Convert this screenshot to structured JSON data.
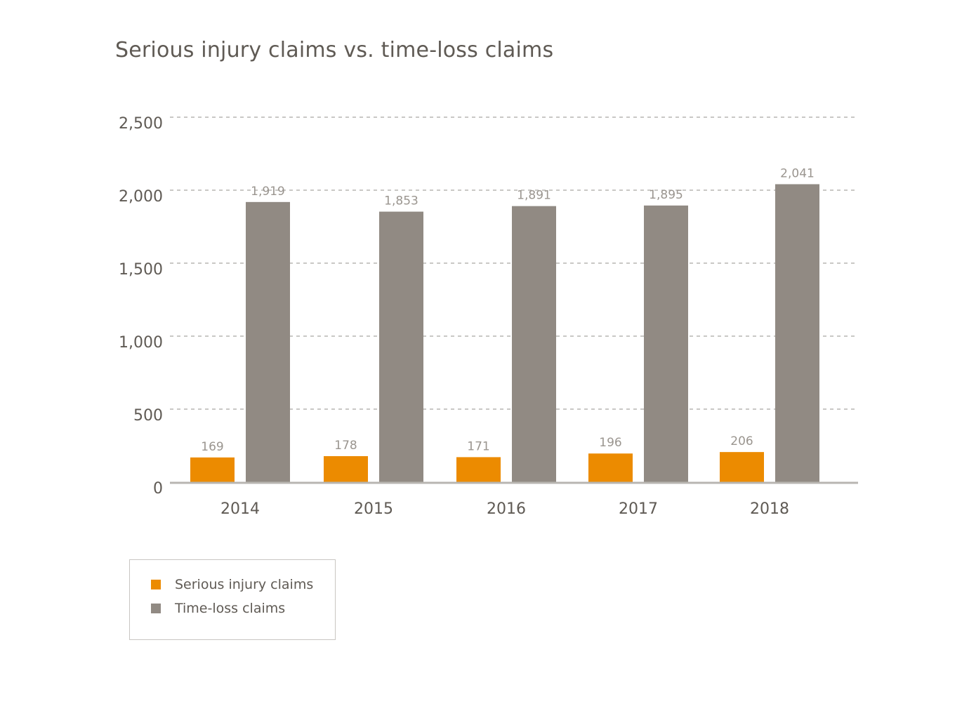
{
  "chart_data": {
    "type": "bar",
    "title": "Serious injury claims vs. time-loss claims",
    "xlabel": "",
    "ylabel": "",
    "categories": [
      "2014",
      "2015",
      "2016",
      "2017",
      "2018"
    ],
    "series": [
      {
        "name": "Serious injury claims",
        "color": "#ec8b00",
        "values": [
          169,
          178,
          171,
          196,
          206
        ],
        "labels": [
          "169",
          "178",
          "171",
          "196",
          "206"
        ]
      },
      {
        "name": "Time-loss claims",
        "color": "#918a83",
        "values": [
          1919,
          1853,
          1891,
          1895,
          2041
        ],
        "labels": [
          "1,919",
          "1,853",
          "1,891",
          "1,895",
          "2,041"
        ]
      }
    ],
    "ylim": [
      0,
      2500
    ],
    "yticks": [
      0,
      500,
      1000,
      1500,
      2000,
      2500
    ],
    "ytick_labels": [
      "0",
      "500",
      "1,000",
      "1,500",
      "2,000",
      "2,500"
    ],
    "grid": true,
    "legend_position": "bottom-left"
  }
}
